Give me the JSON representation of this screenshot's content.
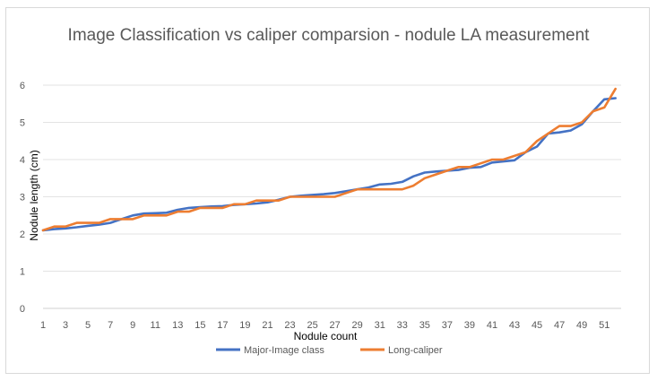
{
  "chart_data": {
    "type": "line",
    "title": "Image Classification vs caliper comparsion - nodule LA measurement",
    "xlabel": "Nodule count",
    "ylabel": "Nodule length (cm)",
    "x": [
      1,
      2,
      3,
      4,
      5,
      6,
      7,
      8,
      9,
      10,
      11,
      12,
      13,
      14,
      15,
      16,
      17,
      18,
      19,
      20,
      21,
      22,
      23,
      24,
      25,
      26,
      27,
      28,
      29,
      30,
      31,
      32,
      33,
      34,
      35,
      36,
      37,
      38,
      39,
      40,
      41,
      42,
      43,
      44,
      45,
      46,
      47,
      48,
      49,
      50,
      51,
      52
    ],
    "xtick_labels": [
      "1",
      "3",
      "5",
      "7",
      "9",
      "11",
      "13",
      "15",
      "17",
      "19",
      "21",
      "23",
      "25",
      "27",
      "29",
      "31",
      "33",
      "35",
      "37",
      "39",
      "41",
      "43",
      "45",
      "47",
      "49",
      "51"
    ],
    "ylim": [
      0,
      6
    ],
    "yticks": [
      "0",
      "1",
      "2",
      "3",
      "4",
      "5",
      "6"
    ],
    "grid": true,
    "legend_position": "bottom",
    "series": [
      {
        "name": "Major-Image class",
        "color": "#4472c4",
        "values": [
          2.1,
          2.13,
          2.15,
          2.18,
          2.22,
          2.25,
          2.3,
          2.4,
          2.5,
          2.55,
          2.56,
          2.57,
          2.65,
          2.7,
          2.72,
          2.74,
          2.75,
          2.78,
          2.8,
          2.82,
          2.85,
          2.92,
          3.0,
          3.03,
          3.05,
          3.07,
          3.1,
          3.15,
          3.2,
          3.25,
          3.33,
          3.35,
          3.4,
          3.55,
          3.65,
          3.68,
          3.7,
          3.72,
          3.78,
          3.8,
          3.92,
          3.95,
          3.98,
          4.2,
          4.35,
          4.7,
          4.73,
          4.78,
          4.95,
          5.3,
          5.62,
          5.65
        ]
      },
      {
        "name": "Long-caliper",
        "color": "#ed7d31",
        "values": [
          2.1,
          2.2,
          2.2,
          2.3,
          2.3,
          2.3,
          2.4,
          2.4,
          2.4,
          2.5,
          2.5,
          2.5,
          2.6,
          2.6,
          2.7,
          2.7,
          2.7,
          2.8,
          2.8,
          2.9,
          2.9,
          2.9,
          3.0,
          3.0,
          3.0,
          3.0,
          3.0,
          3.1,
          3.2,
          3.2,
          3.2,
          3.2,
          3.2,
          3.3,
          3.5,
          3.6,
          3.7,
          3.8,
          3.8,
          3.9,
          4.0,
          4.0,
          4.1,
          4.2,
          4.5,
          4.7,
          4.9,
          4.9,
          5.0,
          5.3,
          5.4,
          5.9
        ]
      }
    ]
  }
}
